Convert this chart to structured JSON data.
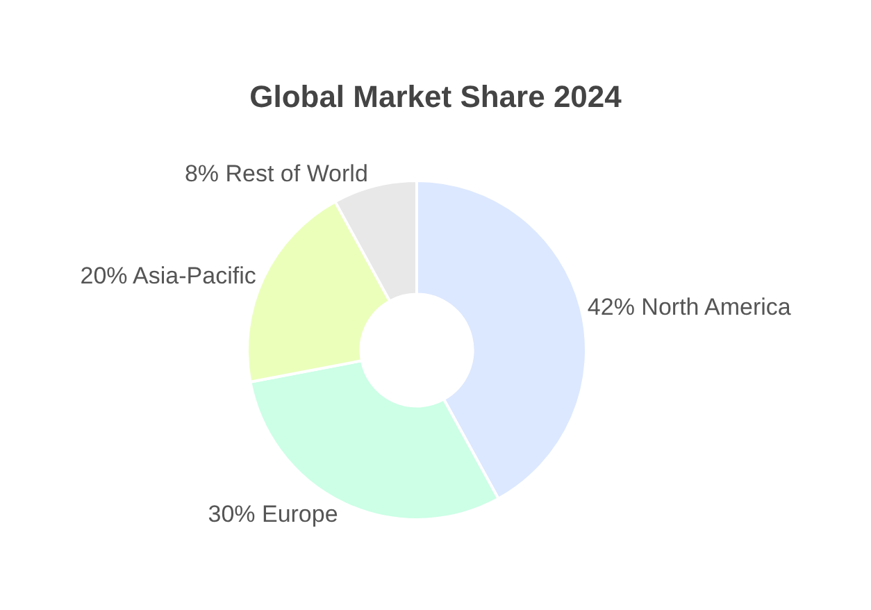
{
  "chart_data": {
    "type": "donut",
    "title": "Global Market Share 2024",
    "categories": [
      "North America",
      "Europe",
      "Asia-Pacific",
      "Rest of World"
    ],
    "values": [
      42,
      30,
      20,
      8
    ],
    "value_labels": [
      "42%",
      "30%",
      "20%",
      "8%"
    ],
    "colors": [
      "#dce8ff",
      "#ccffe6",
      "#ebffbb",
      "#e8e8e8"
    ],
    "legend": false
  }
}
